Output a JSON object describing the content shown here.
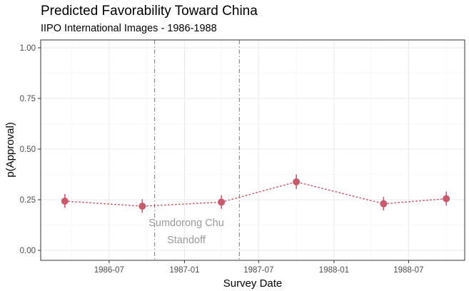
{
  "chart_data": {
    "type": "scatter",
    "title": "Predicted Favorability Toward China",
    "subtitle": "IIPO International Images - 1986-1988",
    "xlabel": "Survey Date",
    "ylabel": "p(Approval)",
    "ylim": [
      0,
      1
    ],
    "xlim": [
      "1986-01-15",
      "1988-11-15"
    ],
    "x_ticks": [
      "1986-07",
      "1987-01",
      "1987-07",
      "1988-01",
      "1988-07"
    ],
    "y_ticks": [
      "0.00",
      "0.25",
      "0.50",
      "0.75",
      "1.00"
    ],
    "grid": true,
    "series": [
      {
        "color": "#c75b6e",
        "points": [
          {
            "x": "1986-03-15",
            "y": 0.243,
            "lo": 0.21,
            "hi": 0.278
          },
          {
            "x": "1986-09-20",
            "y": 0.218,
            "lo": 0.185,
            "hi": 0.252
          },
          {
            "x": "1987-04-01",
            "y": 0.238,
            "lo": 0.205,
            "hi": 0.272
          },
          {
            "x": "1987-10-01",
            "y": 0.338,
            "lo": 0.303,
            "hi": 0.375
          },
          {
            "x": "1988-05-01",
            "y": 0.23,
            "lo": 0.197,
            "hi": 0.264
          },
          {
            "x": "1988-10-01",
            "y": 0.255,
            "lo": 0.221,
            "hi": 0.29
          }
        ]
      }
    ],
    "event_lines": [
      "1986-10-20",
      "1987-05-15"
    ],
    "annotation": {
      "line1": "Sumdorong Chu",
      "line2": "Standoff"
    }
  }
}
